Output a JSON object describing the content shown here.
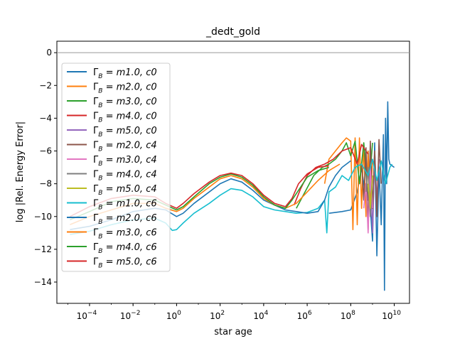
{
  "chart_data": {
    "type": "line",
    "title": "_dedt_gold",
    "xlabel": "star age",
    "ylabel": "log |Rel. Energy Error|",
    "xscale": "log",
    "xlim_log10": [
      -5.5,
      10.7
    ],
    "ylim": [
      -15.3,
      0.7
    ],
    "x_ticks": [
      {
        "log10": -4,
        "base": "10",
        "exp": "−4"
      },
      {
        "log10": -2,
        "base": "10",
        "exp": "−2"
      },
      {
        "log10": 0,
        "base": "10",
        "exp": "0"
      },
      {
        "log10": 2,
        "base": "10",
        "exp": "2"
      },
      {
        "log10": 4,
        "base": "10",
        "exp": "4"
      },
      {
        "log10": 6,
        "base": "10",
        "exp": "6"
      },
      {
        "log10": 8,
        "base": "10",
        "exp": "8"
      },
      {
        "log10": 10,
        "base": "10",
        "exp": "10"
      }
    ],
    "y_ticks": [
      {
        "value": 0,
        "label": "0"
      },
      {
        "value": -2,
        "label": "−2"
      },
      {
        "value": -4,
        "label": "−4"
      },
      {
        "value": -6,
        "label": "−6"
      },
      {
        "value": -8,
        "label": "−8"
      },
      {
        "value": -10,
        "label": "−10"
      },
      {
        "value": -12,
        "label": "−12"
      },
      {
        "value": -14,
        "label": "−14"
      }
    ],
    "reference_line": {
      "y": 0,
      "color": "#999999"
    },
    "legend_location": "upper left",
    "series": [
      {
        "name": "Γ_B = m1.0, c0",
        "label_main": "Γ",
        "label_sub": "B",
        "label_rest": " = m1.0, c0",
        "color": "#1f77b4",
        "points": [
          [
            7.0,
            -9.8
          ],
          [
            7.6,
            -9.7
          ],
          [
            8.0,
            -9.6
          ],
          [
            8.3,
            -8.5
          ],
          [
            8.5,
            -7.0
          ],
          [
            8.7,
            -9.0
          ],
          [
            8.8,
            -6.0
          ],
          [
            8.9,
            -9.5
          ],
          [
            9.0,
            -11.5
          ],
          [
            9.1,
            -5.5
          ],
          [
            9.2,
            -12.4
          ],
          [
            9.3,
            -7.0
          ],
          [
            9.4,
            -10.5
          ],
          [
            9.5,
            -5.0
          ],
          [
            9.55,
            -14.5
          ],
          [
            9.6,
            -4.0
          ],
          [
            9.65,
            -8.0
          ],
          [
            9.7,
            -3.0
          ],
          [
            9.75,
            -6.5
          ],
          [
            9.8,
            -6.8
          ],
          [
            10.0,
            -7.0
          ]
        ]
      },
      {
        "name": "Γ_B = m2.0, c0",
        "label_main": "Γ",
        "label_sub": "B",
        "label_rest": " = m2.0, c0",
        "color": "#ff7f0e",
        "points": [
          [
            6.8,
            -8.0
          ],
          [
            7.0,
            -6.5
          ],
          [
            7.3,
            -6.0
          ],
          [
            7.6,
            -5.5
          ],
          [
            7.8,
            -5.2
          ],
          [
            8.0,
            -5.4
          ],
          [
            8.1,
            -10.8
          ],
          [
            8.2,
            -5.2
          ],
          [
            8.3,
            -10.5
          ],
          [
            8.4,
            -5.2
          ],
          [
            8.5,
            -9.5
          ],
          [
            8.6,
            -5.5
          ],
          [
            8.7,
            -10.0
          ],
          [
            8.8,
            -6.0
          ],
          [
            8.9,
            -9.5
          ],
          [
            9.0,
            -6.5
          ]
        ]
      },
      {
        "name": "Γ_B = m3.0, c0",
        "label_main": "Γ",
        "label_sub": "B",
        "label_rest": " = m3.0, c0",
        "color": "#2ca02c",
        "points": [
          [
            5.5,
            -9.5
          ],
          [
            5.9,
            -8.5
          ],
          [
            6.3,
            -7.5
          ],
          [
            6.7,
            -7.0
          ],
          [
            7.0,
            -6.8
          ],
          [
            7.3,
            -6.5
          ],
          [
            7.6,
            -6.0
          ],
          [
            7.8,
            -5.5
          ],
          [
            8.0,
            -6.3
          ],
          [
            8.2,
            -5.4
          ],
          [
            8.4,
            -8.0
          ],
          [
            8.6,
            -5.5
          ],
          [
            8.8,
            -9.0
          ],
          [
            9.0,
            -5.5
          ]
        ]
      },
      {
        "name": "Γ_B = m4.0, c0",
        "label_main": "Γ",
        "label_sub": "B",
        "label_rest": " = m4.0, c0",
        "color": "#d62728",
        "points": [
          [
            5.4,
            -9.3
          ],
          [
            5.7,
            -8.3
          ],
          [
            6.0,
            -7.5
          ],
          [
            6.4,
            -7.0
          ],
          [
            6.8,
            -6.8
          ],
          [
            7.2,
            -6.5
          ],
          [
            7.6,
            -6.0
          ],
          [
            8.0,
            -5.8
          ],
          [
            8.3,
            -6.8
          ],
          [
            8.5,
            -5.6
          ],
          [
            8.8,
            -6.2
          ]
        ]
      },
      {
        "name": "Γ_B = m5.0, c0",
        "label_main": "Γ",
        "label_sub": "B",
        "label_rest": " = m5.0, c0",
        "color": "#9467bd",
        "points": [
          [
            8.8,
            -9.0
          ],
          [
            8.9,
            -7.0
          ],
          [
            9.0,
            -11.0
          ],
          [
            9.1,
            -6.0
          ],
          [
            9.2,
            -9.0
          ],
          [
            9.3,
            -6.5
          ]
        ]
      },
      {
        "name": "Γ_B = m2.0, c4",
        "label_main": "Γ",
        "label_sub": "B",
        "label_rest": " = m2.0, c4",
        "color": "#8c564b",
        "points": [
          [
            8.5,
            -6.8
          ],
          [
            8.6,
            -9.0
          ],
          [
            8.7,
            -5.8
          ],
          [
            8.8,
            -10.8
          ],
          [
            8.9,
            -5.4
          ],
          [
            9.0,
            -9.5
          ],
          [
            9.1,
            -6.0
          ],
          [
            9.2,
            -10.0
          ],
          [
            9.3,
            -5.3
          ],
          [
            9.4,
            -8.0
          ]
        ]
      },
      {
        "name": "Γ_B = m3.0, c4",
        "label_main": "Γ",
        "label_sub": "B",
        "label_rest": " = m3.0, c4",
        "color": "#e377c2",
        "points": [
          [
            8.6,
            -9.5
          ],
          [
            8.7,
            -8.0
          ],
          [
            8.8,
            -11.0
          ],
          [
            8.9,
            -7.0
          ],
          [
            9.0,
            -9.5
          ]
        ]
      },
      {
        "name": "Γ_B = m4.0, c4",
        "label_main": "Γ",
        "label_sub": "B",
        "label_rest": " = m4.0, c4",
        "color": "#7f7f7f",
        "points": [
          [
            8.7,
            -8.5
          ],
          [
            8.8,
            -7.0
          ],
          [
            8.9,
            -10.0
          ],
          [
            9.0,
            -7.5
          ]
        ]
      },
      {
        "name": "Γ_B = m5.0, c4",
        "label_main": "Γ",
        "label_sub": "B",
        "label_rest": " = m5.0, c4",
        "color": "#bcbd22",
        "points": [
          [
            8.8,
            -8.0
          ],
          [
            8.9,
            -9.5
          ],
          [
            9.0,
            -7.5
          ]
        ]
      },
      {
        "name": "Γ_B = m1.0, c6",
        "label_main": "Γ",
        "label_sub": "B",
        "label_rest": " = m1.0, c6",
        "color": "#17becf",
        "points": [
          [
            -4.9,
            -11.1
          ],
          [
            -4.0,
            -10.9
          ],
          [
            -3.0,
            -10.5
          ],
          [
            -2.0,
            -10.2
          ],
          [
            -1.0,
            -10.1
          ],
          [
            -0.5,
            -10.4
          ],
          [
            -0.2,
            -10.85
          ],
          [
            0.0,
            -10.8
          ],
          [
            0.3,
            -10.4
          ],
          [
            0.8,
            -9.8
          ],
          [
            1.5,
            -9.2
          ],
          [
            2.0,
            -8.7
          ],
          [
            2.5,
            -8.3
          ],
          [
            3.0,
            -8.4
          ],
          [
            3.5,
            -8.8
          ],
          [
            4.0,
            -9.4
          ],
          [
            4.5,
            -9.6
          ],
          [
            5.0,
            -9.7
          ],
          [
            5.5,
            -9.8
          ],
          [
            6.0,
            -9.75
          ],
          [
            6.5,
            -9.5
          ],
          [
            6.8,
            -9.0
          ],
          [
            6.9,
            -11.0
          ],
          [
            7.0,
            -8.5
          ],
          [
            7.3,
            -8.2
          ],
          [
            7.6,
            -7.5
          ],
          [
            7.9,
            -7.8
          ],
          [
            8.2,
            -7.0
          ],
          [
            8.5,
            -6.8
          ],
          [
            8.8,
            -7.5
          ],
          [
            9.0,
            -6.5
          ],
          [
            9.2,
            -7.8
          ],
          [
            9.4,
            -6.6
          ],
          [
            9.6,
            -8.0
          ],
          [
            9.8,
            -7.0
          ],
          [
            9.9,
            -6.8
          ]
        ]
      },
      {
        "name": "Γ_B = m2.0, c6",
        "label_main": "Γ",
        "label_sub": "B",
        "label_rest": " = m2.0, c6",
        "color": "#1f77b4",
        "points": [
          [
            -4.9,
            -10.8
          ],
          [
            -4.0,
            -10.6
          ],
          [
            -3.0,
            -10.2
          ],
          [
            -2.0,
            -9.7
          ],
          [
            -1.0,
            -9.5
          ],
          [
            -0.5,
            -9.6
          ],
          [
            0.0,
            -10.0
          ],
          [
            0.3,
            -9.8
          ],
          [
            0.8,
            -9.2
          ],
          [
            1.5,
            -8.5
          ],
          [
            2.0,
            -8.0
          ],
          [
            2.5,
            -7.7
          ],
          [
            3.0,
            -7.9
          ],
          [
            3.5,
            -8.4
          ],
          [
            4.0,
            -9.0
          ],
          [
            4.5,
            -9.3
          ],
          [
            5.0,
            -9.6
          ],
          [
            5.5,
            -9.7
          ],
          [
            6.0,
            -9.8
          ],
          [
            6.5,
            -9.7
          ],
          [
            6.8,
            -9.0
          ],
          [
            7.0,
            -8.2
          ],
          [
            7.3,
            -7.5
          ],
          [
            7.6,
            -7.0
          ],
          [
            8.0,
            -6.6
          ]
        ]
      },
      {
        "name": "Γ_B = m3.0, c6",
        "label_main": "Γ",
        "label_sub": "B",
        "label_rest": " = m3.0, c6",
        "color": "#ff7f0e",
        "points": [
          [
            -4.9,
            -10.5
          ],
          [
            -4.0,
            -10.0
          ],
          [
            -3.0,
            -9.6
          ],
          [
            -2.0,
            -9.2
          ],
          [
            -1.0,
            -9.2
          ],
          [
            -0.5,
            -9.5
          ],
          [
            0.0,
            -9.7
          ],
          [
            0.3,
            -9.5
          ],
          [
            0.8,
            -8.9
          ],
          [
            1.5,
            -8.2
          ],
          [
            2.0,
            -7.7
          ],
          [
            2.5,
            -7.5
          ],
          [
            3.0,
            -7.7
          ],
          [
            3.5,
            -8.2
          ],
          [
            4.0,
            -8.9
          ],
          [
            4.5,
            -9.3
          ],
          [
            5.0,
            -9.5
          ],
          [
            5.5,
            -9.2
          ],
          [
            6.0,
            -8.5
          ],
          [
            6.5,
            -7.8
          ],
          [
            7.0,
            -7.2
          ],
          [
            7.5,
            -6.8
          ]
        ]
      },
      {
        "name": "Γ_B = m4.0, c6",
        "label_main": "Γ",
        "label_sub": "B",
        "label_rest": " = m4.0, c6",
        "color": "#2ca02c",
        "points": [
          [
            -4.9,
            -10.2
          ],
          [
            -4.0,
            -9.7
          ],
          [
            -3.0,
            -9.1
          ],
          [
            -2.0,
            -8.9
          ],
          [
            -1.0,
            -9.0
          ],
          [
            -0.5,
            -9.3
          ],
          [
            0.0,
            -9.6
          ],
          [
            0.3,
            -9.4
          ],
          [
            0.8,
            -8.8
          ],
          [
            1.5,
            -8.0
          ],
          [
            2.0,
            -7.6
          ],
          [
            2.5,
            -7.4
          ],
          [
            3.0,
            -7.6
          ],
          [
            3.5,
            -8.1
          ],
          [
            4.0,
            -8.8
          ],
          [
            4.5,
            -9.3
          ],
          [
            5.0,
            -9.5
          ],
          [
            5.3,
            -9.0
          ],
          [
            5.7,
            -8.2
          ],
          [
            6.0,
            -7.6
          ],
          [
            6.5,
            -7.2
          ],
          [
            7.0,
            -7.0
          ]
        ]
      },
      {
        "name": "Γ_B = m5.0, c6",
        "label_main": "Γ",
        "label_sub": "B",
        "label_rest": " = m5.0, c6",
        "color": "#d62728",
        "points": [
          [
            -4.9,
            -10.0
          ],
          [
            -4.0,
            -9.4
          ],
          [
            -3.0,
            -8.9
          ],
          [
            -2.0,
            -8.7
          ],
          [
            -1.0,
            -8.8
          ],
          [
            -0.5,
            -9.2
          ],
          [
            0.0,
            -9.5
          ],
          [
            0.3,
            -9.2
          ],
          [
            0.8,
            -8.6
          ],
          [
            1.5,
            -7.9
          ],
          [
            2.0,
            -7.5
          ],
          [
            2.5,
            -7.35
          ],
          [
            3.0,
            -7.5
          ],
          [
            3.5,
            -8.0
          ],
          [
            4.0,
            -8.7
          ],
          [
            4.5,
            -9.2
          ],
          [
            5.0,
            -9.4
          ],
          [
            5.3,
            -8.9
          ],
          [
            5.6,
            -8.0
          ],
          [
            6.0,
            -7.4
          ],
          [
            6.5,
            -7.0
          ],
          [
            7.0,
            -6.9
          ]
        ]
      }
    ]
  }
}
